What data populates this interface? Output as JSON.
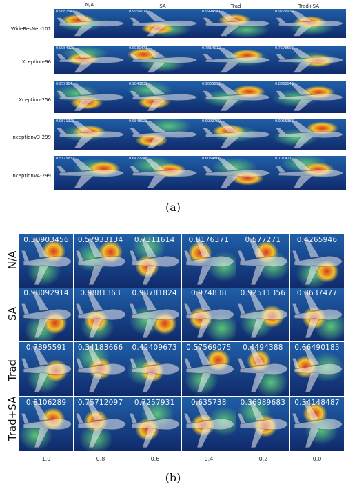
{
  "panel_a": {
    "columns": [
      "N/A",
      "SA",
      "Trad",
      "Trad+SA"
    ],
    "rows": [
      {
        "label": "WideResNet-101",
        "values": [
          "0.9881543",
          "0.9959073",
          "0.9994541",
          "0.9776934"
        ]
      },
      {
        "label": "Xception-96",
        "values": [
          "0.9954328",
          "0.9931471",
          "0.7814012",
          "0.7578597"
        ]
      },
      {
        "label": "Xception-256",
        "values": [
          "0.959984",
          "0.9843637",
          "0.9855892",
          "0.8662049"
        ]
      },
      {
        "label": "InceptionV3-299",
        "values": [
          "0.9871328",
          "0.9848928",
          "0.9999769",
          "0.9955388"
        ]
      },
      {
        "label": "InceptionV4-299",
        "values": [
          "0.5175837",
          "0.6422048",
          "0.6054866",
          "0.701411"
        ]
      }
    ],
    "caption": "(a)"
  },
  "panel_b": {
    "rows": [
      {
        "label": "N/A",
        "values": [
          "0.30903456",
          "0.57933134",
          "0.7311614",
          "0.8176371",
          "0.577271",
          "0.4265946"
        ]
      },
      {
        "label": "SA",
        "values": [
          "0.98092914",
          "0.9881363",
          "0.98781824",
          "0.974838",
          "0.92511356",
          "0.8637477"
        ]
      },
      {
        "label": "Trad",
        "values": [
          "0.7895591",
          "0.34183666",
          "0.42409673",
          "0.57569075",
          "0.4494388",
          "0.66490185"
        ]
      },
      {
        "label": "Trad+SA",
        "values": [
          "0.8106289",
          "0.75712097",
          "0.7257931",
          "0.635738",
          "0.36989683",
          "0.34148487"
        ]
      }
    ],
    "x_ticks": [
      "1.0",
      "0.8",
      "0.6",
      "0.4",
      "0.2",
      "0.0"
    ],
    "caption": "(b)"
  },
  "heatmap_colors": {
    "hot": "#d83a1c",
    "warm": "#f2c12e",
    "mid": "#59c27a",
    "cool": "#1f5fa8",
    "cold": "#102a6b"
  }
}
